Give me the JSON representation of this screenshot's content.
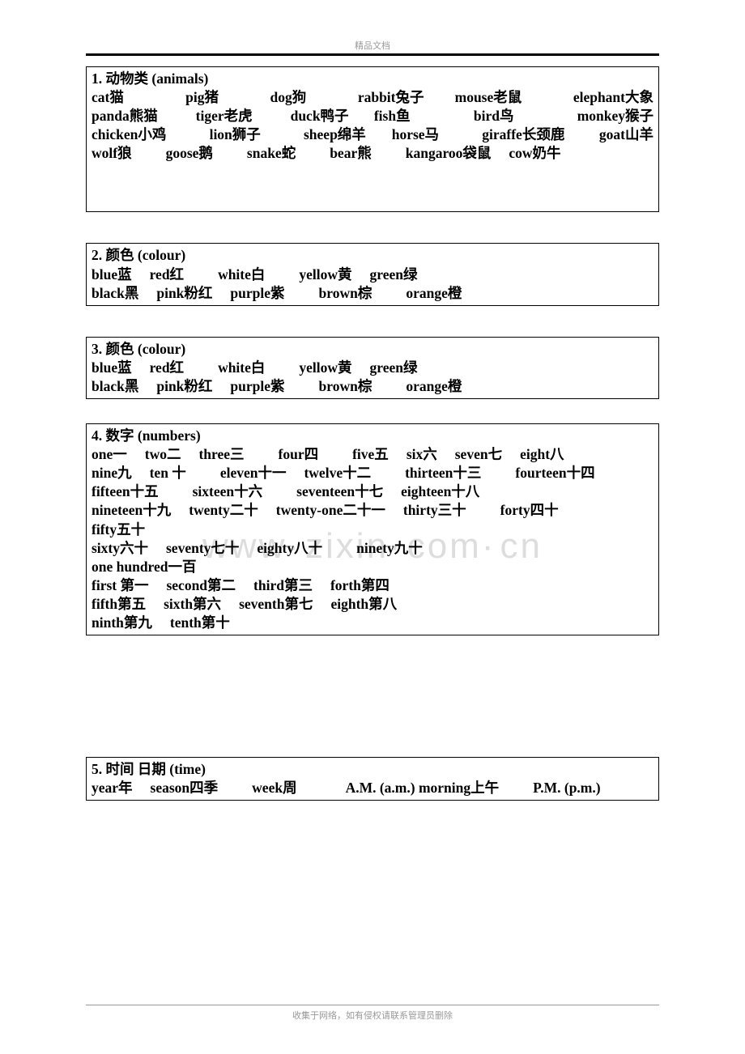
{
  "header": "精品文档",
  "footer": "收集于网络，如有侵权请联系管理员删除",
  "watermark": "www·zixin·com·cn",
  "sections": {
    "s1": {
      "title": "1. 动物类 (animals)",
      "l1": {
        "a": "cat猫",
        "b": "pig猪",
        "c": "dog狗",
        "d": "rabbit兔子",
        "e": "mouse老鼠",
        "f": "elephant大象"
      },
      "l2": {
        "a": "panda熊猫",
        "b": "tiger老虎",
        "c": "duck鸭子",
        "d": "fish鱼",
        "e": "bird鸟",
        "f": "monkey猴子"
      },
      "l3": {
        "a": "chicken小鸡",
        "b": "lion狮子",
        "c": "sheep绵羊",
        "d": "horse马",
        "e": "giraffe长颈鹿",
        "f": "goat山羊"
      },
      "l4": {
        "a": "wolf狼",
        "b": "goose鹅",
        "c": "snake蛇",
        "d": "bear熊",
        "e": "kangaroo袋鼠",
        "f": "cow奶牛"
      }
    },
    "s2": {
      "title": "2. 颜色 (colour)",
      "l1": {
        "a": "blue蓝",
        "b": "red红",
        "c": "white白",
        "d": "yellow黄",
        "e": "green绿"
      },
      "l2": {
        "a": "black黑",
        "b": "pink粉红",
        "c": "purple紫",
        "d": "brown棕",
        "e": "orange橙"
      }
    },
    "s3": {
      "title": "3. 颜色 (colour)",
      "l1": {
        "a": "blue蓝",
        "b": "red红",
        "c": "white白",
        "d": "yellow黄",
        "e": "green绿"
      },
      "l2": {
        "a": "black黑",
        "b": "pink粉红",
        "c": "purple紫",
        "d": "brown棕",
        "e": "orange橙"
      }
    },
    "s4": {
      "title": "4. 数字 (numbers)",
      "l1": {
        "a": "one一",
        "b": "two二",
        "c": "three三",
        "d": "four四",
        "e": "five五",
        "f": "six六",
        "g": "seven七",
        "h": "eight八"
      },
      "l2": {
        "a": "nine九",
        "b": "ten 十",
        "c": "eleven十一",
        "d": "twelve十二",
        "e": "thirteen十三",
        "f": "fourteen十四"
      },
      "l3": {
        "a": "fifteen十五",
        "b": "sixteen十六",
        "c": "seventeen十七",
        "d": "eighteen十八"
      },
      "l4": {
        "a": "nineteen十九",
        "b": "twenty二十",
        "c": "twenty-one二十一",
        "d": "thirty三十",
        "e": "forty四十"
      },
      "l5": {
        "a": "fifty五十"
      },
      "l6": {
        "a": " sixty六十",
        "b": "seventy七十",
        "c": "eighty八十",
        "d": "ninety九十"
      },
      "l7": {
        "a": "one hundred一百"
      },
      "l8": {
        "a": "first 第一",
        "b": "second第二",
        "c": "third第三",
        "d": "forth第四"
      },
      "l9": {
        "a": " fifth第五",
        "b": "sixth第六",
        "c": "seventh第七",
        "d": "eighth第八"
      },
      "l10": {
        "a": "ninth第九",
        "b": "tenth第十"
      }
    },
    "s5": {
      "title": "5. 时间 日期 (time)",
      "l1": {
        "a": "year年",
        "b": "season四季",
        "c": "week周",
        "d": "A.M. (a.m.) morning上午",
        "e": "P.M. (p.m.)"
      }
    }
  }
}
